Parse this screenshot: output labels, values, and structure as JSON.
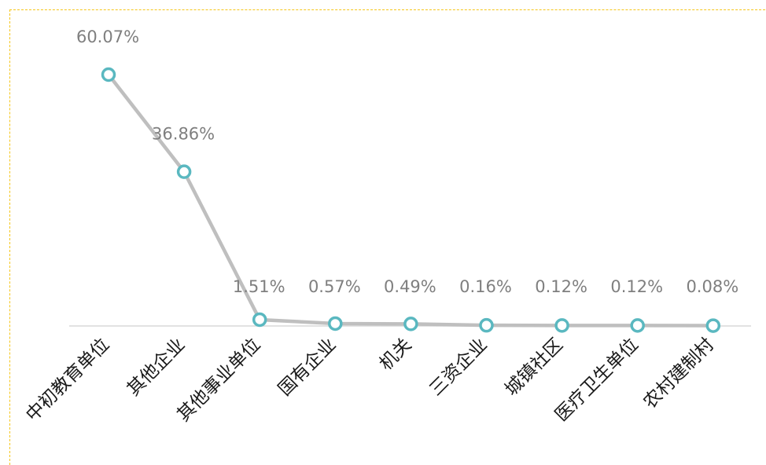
{
  "chart_data": {
    "type": "line",
    "categories": [
      "中初教育单位",
      "其他企业",
      "其他事业单位",
      "国有企业",
      "机关",
      "三资企业",
      "城镇社区",
      "医疗卫生单位",
      "农村建制村"
    ],
    "values": [
      60.07,
      36.86,
      1.51,
      0.57,
      0.49,
      0.16,
      0.12,
      0.12,
      0.08
    ],
    "data_labels": [
      "60.07%",
      "36.86%",
      "1.51%",
      "0.57%",
      "0.49%",
      "0.16%",
      "0.12%",
      "0.12%",
      "0.08%"
    ],
    "title": "",
    "xlabel": "",
    "ylabel": "",
    "ylim": [
      0,
      62
    ],
    "grid": false,
    "legend": "none",
    "colors": {
      "line": "#bfbfbf",
      "marker_stroke": "#5ab8c0",
      "marker_fill": "#ffffff",
      "axis": "#d9d9d9",
      "frame": "#f5c518",
      "data_label": "#7f7f7f",
      "category_label": "#1a1a1a"
    }
  }
}
